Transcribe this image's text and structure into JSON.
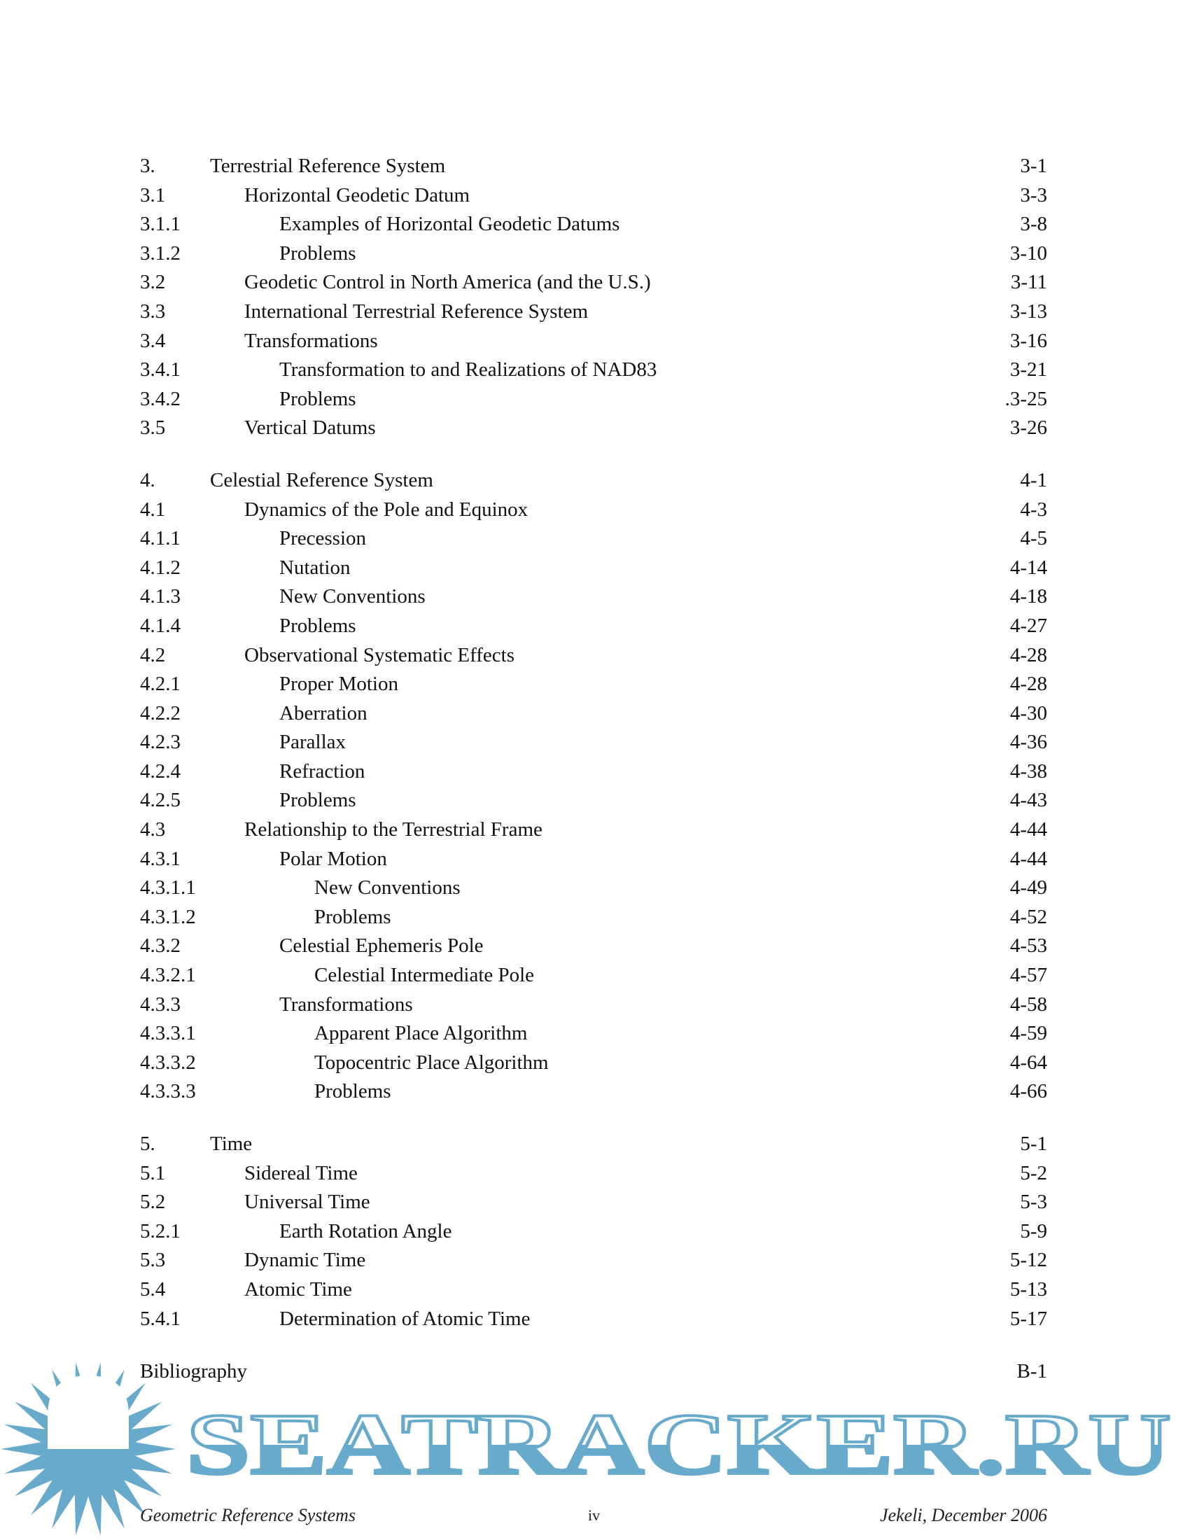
{
  "toc": {
    "groups": [
      {
        "entries": [
          {
            "num": "3.",
            "title": "Terrestrial Reference System",
            "page": "3-1",
            "level": 1
          },
          {
            "num": "3.1",
            "title": "Horizontal Geodetic Datum",
            "page": "3-3",
            "level": 2
          },
          {
            "num": "3.1.1",
            "title": "Examples of Horizontal Geodetic Datums",
            "page": "3-8",
            "level": 3
          },
          {
            "num": "3.1.2",
            "title": "Problems",
            "page": "3-10",
            "level": 3
          },
          {
            "num": "3.2",
            "title": "Geodetic Control in North America (and the U.S.)",
            "page": "3-11",
            "level": 2
          },
          {
            "num": "3.3",
            "title": "International Terrestrial Reference System",
            "page": "3-13",
            "level": 2
          },
          {
            "num": "3.4",
            "title": "Transformations",
            "page": "3-16",
            "level": 2
          },
          {
            "num": "3.4.1",
            "title": "Transformation to and Realizations of NAD83",
            "page": "3-21",
            "level": 3
          },
          {
            "num": "3.4.2",
            "title": "Problems",
            "page": ".3-25",
            "level": 3
          },
          {
            "num": "3.5",
            "title": "Vertical Datums",
            "page": "3-26",
            "level": 2
          }
        ]
      },
      {
        "entries": [
          {
            "num": "4.",
            "title": "Celestial Reference System",
            "page": "4-1",
            "level": 1
          },
          {
            "num": "4.1",
            "title": "Dynamics of the Pole and Equinox",
            "page": "4-3",
            "level": 2
          },
          {
            "num": "4.1.1",
            "title": "Precession",
            "page": "4-5",
            "level": 3
          },
          {
            "num": "4.1.2",
            "title": "Nutation",
            "page": "4-14",
            "level": 3
          },
          {
            "num": "4.1.3",
            "title": "New Conventions",
            "page": "4-18",
            "level": 3
          },
          {
            "num": "4.1.4",
            "title": "Problems",
            "page": "4-27",
            "level": 3
          },
          {
            "num": "4.2",
            "title": "Observational Systematic Effects",
            "page": "4-28",
            "level": 2
          },
          {
            "num": "4.2.1",
            "title": "Proper Motion",
            "page": "4-28",
            "level": 3
          },
          {
            "num": "4.2.2",
            "title": "Aberration",
            "page": "4-30",
            "level": 3
          },
          {
            "num": "4.2.3",
            "title": "Parallax",
            "page": "4-36",
            "level": 3
          },
          {
            "num": "4.2.4",
            "title": "Refraction",
            "page": "4-38",
            "level": 3
          },
          {
            "num": "4.2.5",
            "title": "Problems",
            "page": "4-43",
            "level": 3
          },
          {
            "num": "4.3",
            "title": "Relationship to the Terrestrial Frame",
            "page": "4-44",
            "level": 2
          },
          {
            "num": "4.3.1",
            "title": "Polar Motion",
            "page": "4-44",
            "level": 3
          },
          {
            "num": "4.3.1.1",
            "title": "New Conventions",
            "page": "4-49",
            "level": 4
          },
          {
            "num": "4.3.1.2",
            "title": "Problems",
            "page": "4-52",
            "level": 4
          },
          {
            "num": "4.3.2",
            "title": "Celestial Ephemeris Pole",
            "page": "4-53",
            "level": 3
          },
          {
            "num": "4.3.2.1",
            "title": "Celestial Intermediate Pole",
            "page": "4-57",
            "level": 4
          },
          {
            "num": "4.3.3",
            "title": "Transformations",
            "page": "4-58",
            "level": 3
          },
          {
            "num": "4.3.3.1",
            "title": "Apparent Place Algorithm",
            "page": "4-59",
            "level": 4
          },
          {
            "num": "4.3.3.2",
            "title": "Topocentric Place Algorithm",
            "page": "4-64",
            "level": 4
          },
          {
            "num": "4.3.3.3",
            "title": "Problems",
            "page": "4-66",
            "level": 4
          }
        ]
      },
      {
        "entries": [
          {
            "num": "5.",
            "title": "Time",
            "page": "5-1",
            "level": 1
          },
          {
            "num": "5.1",
            "title": "Sidereal Time",
            "page": "5-2",
            "level": 2
          },
          {
            "num": "5.2",
            "title": "Universal Time",
            "page": "5-3",
            "level": 2
          },
          {
            "num": "5.2.1",
            "title": "Earth Rotation Angle",
            "page": "5-9",
            "level": 3
          },
          {
            "num": "5.3",
            "title": "Dynamic Time",
            "page": "5-12",
            "level": 2
          },
          {
            "num": "5.4",
            "title": "Atomic Time",
            "page": "5-13",
            "level": 2
          },
          {
            "num": "5.4.1",
            "title": "Determination of Atomic Time",
            "page": "5-17",
            "level": 3
          }
        ]
      }
    ],
    "bibliography": {
      "title": "Bibliography",
      "page": "B-1"
    }
  },
  "footer": {
    "left": "Geometric Reference Systems",
    "center": "iv",
    "right": "Jekeli, December 2006"
  },
  "watermark": {
    "text": "SEATRACKER.RU",
    "color": "#67aacb"
  }
}
